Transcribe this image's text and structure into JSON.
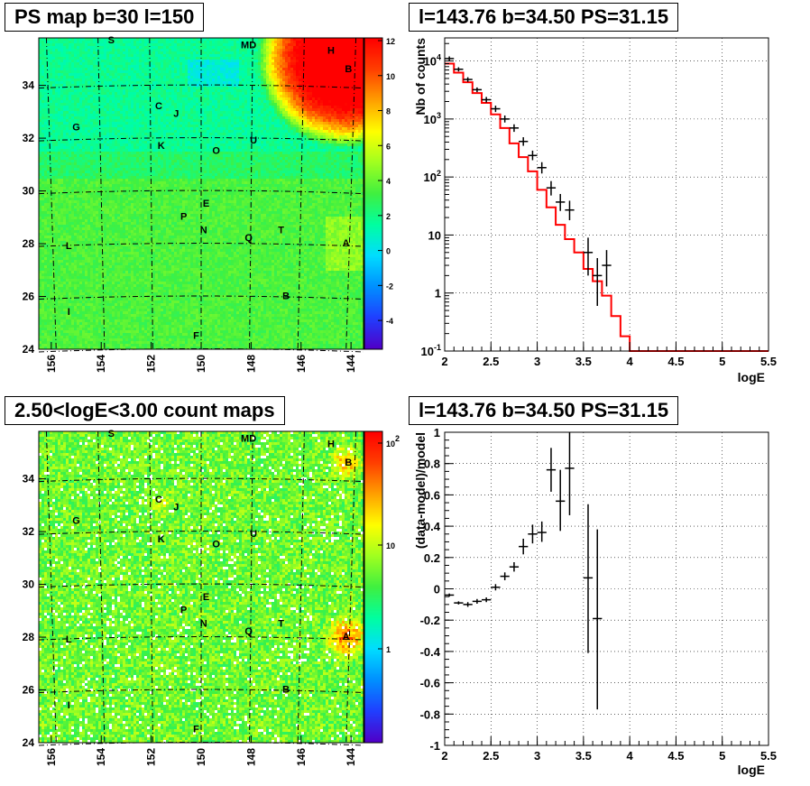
{
  "chart_data": [
    {
      "type": "heatmap",
      "title": "PS map b=30 l=150",
      "x_ticks": [
        156,
        154,
        152,
        150,
        148,
        146,
        144
      ],
      "y_ticks": [
        24,
        26,
        28,
        30,
        32,
        34
      ],
      "xlim": [
        156.5,
        143.5
      ],
      "ylim": [
        24,
        35.8
      ],
      "z_ticks": [
        "12",
        "10",
        "8",
        "6",
        "4",
        "2",
        "0",
        "-2",
        "-4"
      ],
      "zlim": [
        -5,
        12
      ],
      "colorscale": [
        "#5000c8",
        "#2040ff",
        "#0090ff",
        "#00ddff",
        "#00ffa0",
        "#40f040",
        "#a0ff20",
        "#ffff00",
        "#ffa000",
        "#ff4000",
        "#ff0000"
      ],
      "sources": [
        {
          "label": "S",
          "l": 153.6,
          "b": 35.6
        },
        {
          "label": "MD",
          "l": 148.1,
          "b": 35.4
        },
        {
          "label": "H",
          "l": 144.8,
          "b": 35.2
        },
        {
          "label": "B",
          "l": 144.1,
          "b": 34.5
        },
        {
          "label": "C",
          "l": 151.7,
          "b": 33.1
        },
        {
          "label": "J",
          "l": 151.0,
          "b": 32.8
        },
        {
          "label": "G",
          "l": 155.0,
          "b": 32.3
        },
        {
          "label": "K",
          "l": 151.6,
          "b": 31.6
        },
        {
          "label": "O",
          "l": 149.4,
          "b": 31.4
        },
        {
          "label": "U",
          "l": 147.9,
          "b": 31.8
        },
        {
          "label": "E",
          "l": 149.8,
          "b": 29.4
        },
        {
          "label": "P",
          "l": 150.7,
          "b": 28.9
        },
        {
          "label": "N",
          "l": 149.9,
          "b": 28.4
        },
        {
          "label": "Q",
          "l": 148.1,
          "b": 28.1
        },
        {
          "label": "T",
          "l": 146.8,
          "b": 28.4
        },
        {
          "label": "L",
          "l": 155.3,
          "b": 27.8
        },
        {
          "label": "A",
          "l": 144.2,
          "b": 27.9
        },
        {
          "label": "B",
          "l": 146.6,
          "b": 25.9
        },
        {
          "label": "I",
          "l": 155.3,
          "b": 25.3
        },
        {
          "label": "F",
          "l": 150.2,
          "b": 24.4
        }
      ]
    },
    {
      "type": "line",
      "title": "l=143.76 b=34.50 PS=31.15",
      "xlabel": "logE",
      "ylabel": "Nb of counts",
      "xlim": [
        2,
        5.5
      ],
      "ylim": [
        0.1,
        25000
      ],
      "yscale": "log",
      "x_ticks": [
        "2",
        "2.5",
        "3",
        "3.5",
        "4",
        "4.5",
        "5",
        "5.5"
      ],
      "y_ticks": [
        "10^{-1}",
        "1",
        "10",
        "10^{2}",
        "10^{3}",
        "10^{4}"
      ],
      "grid": true,
      "series": [
        {
          "kind": "data",
          "color": "#000000",
          "points": [
            {
              "x": 2.05,
              "y": 11000,
              "lo": 10000,
              "hi": 12000
            },
            {
              "x": 2.15,
              "y": 7200,
              "lo": 6600,
              "hi": 7800
            },
            {
              "x": 2.25,
              "y": 4800,
              "lo": 4350,
              "hi": 5250
            },
            {
              "x": 2.35,
              "y": 3200,
              "lo": 2900,
              "hi": 3500
            },
            {
              "x": 2.45,
              "y": 2150,
              "lo": 1920,
              "hi": 2400
            },
            {
              "x": 2.55,
              "y": 1500,
              "lo": 1320,
              "hi": 1700
            },
            {
              "x": 2.65,
              "y": 1000,
              "lo": 870,
              "hi": 1150
            },
            {
              "x": 2.75,
              "y": 700,
              "lo": 600,
              "hi": 810
            },
            {
              "x": 2.85,
              "y": 410,
              "lo": 345,
              "hi": 485
            },
            {
              "x": 2.95,
              "y": 235,
              "lo": 195,
              "hi": 285
            },
            {
              "x": 3.05,
              "y": 145,
              "lo": 115,
              "hi": 180
            },
            {
              "x": 3.15,
              "y": 65,
              "lo": 48,
              "hi": 85
            },
            {
              "x": 3.25,
              "y": 37,
              "lo": 26,
              "hi": 51
            },
            {
              "x": 3.35,
              "y": 27,
              "lo": 18,
              "hi": 39
            },
            {
              "x": 3.55,
              "y": 5,
              "lo": 2,
              "hi": 9
            },
            {
              "x": 3.65,
              "y": 2,
              "lo": 0.6,
              "hi": 4
            },
            {
              "x": 3.75,
              "y": 3,
              "lo": 1.3,
              "hi": 5.5
            }
          ]
        },
        {
          "kind": "model",
          "color": "#ff0000",
          "bin_edges": [
            2.0,
            2.1,
            2.2,
            2.3,
            2.4,
            2.5,
            2.6,
            2.7,
            2.8,
            2.9,
            3.0,
            3.1,
            3.2,
            3.3,
            3.4,
            3.5,
            3.6,
            3.7,
            3.8,
            3.9,
            4.0,
            5.5
          ],
          "values": [
            9000,
            6300,
            4300,
            2800,
            1900,
            1200,
            700,
            380,
            220,
            125,
            60,
            30,
            15,
            8.5,
            5,
            2.6,
            1.6,
            0.9,
            0.4,
            0.18,
            0.1
          ]
        }
      ]
    },
    {
      "type": "heatmap",
      "title": "2.50<logE<3.00 count maps",
      "x_ticks": [
        156,
        154,
        152,
        150,
        148,
        146,
        144
      ],
      "y_ticks": [
        24,
        26,
        28,
        30,
        32,
        34
      ],
      "xlim": [
        156.5,
        143.5
      ],
      "ylim": [
        24,
        35.8
      ],
      "z_ticks": [
        "10^{2}",
        "10",
        "1"
      ],
      "zscale": "log",
      "colorscale": [
        "#5000c8",
        "#2040ff",
        "#0090ff",
        "#00ddff",
        "#00ffa0",
        "#40f040",
        "#a0ff20",
        "#ffff00",
        "#ffa000",
        "#ff4000",
        "#ff0000"
      ],
      "sources_same_as_first": true
    },
    {
      "type": "scatter",
      "title": "l=143.76 b=34.50 PS=31.15",
      "xlabel": "logE",
      "ylabel": "(data-model)/model",
      "xlim": [
        2,
        5.5
      ],
      "ylim": [
        -1,
        1
      ],
      "x_ticks": [
        "2",
        "2.5",
        "3",
        "3.5",
        "4",
        "4.5",
        "5",
        "5.5"
      ],
      "y_ticks": [
        "1",
        "0.8",
        "0.6",
        "0.4",
        "0.2",
        "0",
        "-0.2",
        "-0.4",
        "-0.6",
        "-0.8",
        "-1"
      ],
      "grid": true,
      "points": [
        {
          "x": 2.05,
          "y": -0.04,
          "lo": -0.05,
          "hi": -0.03
        },
        {
          "x": 2.15,
          "y": -0.09,
          "lo": -0.1,
          "hi": -0.08
        },
        {
          "x": 2.25,
          "y": -0.1,
          "lo": -0.115,
          "hi": -0.085
        },
        {
          "x": 2.35,
          "y": -0.08,
          "lo": -0.095,
          "hi": -0.065
        },
        {
          "x": 2.45,
          "y": -0.07,
          "lo": -0.085,
          "hi": -0.055
        },
        {
          "x": 2.55,
          "y": 0.01,
          "lo": -0.01,
          "hi": 0.03
        },
        {
          "x": 2.65,
          "y": 0.08,
          "lo": 0.055,
          "hi": 0.105
        },
        {
          "x": 2.75,
          "y": 0.14,
          "lo": 0.11,
          "hi": 0.17
        },
        {
          "x": 2.85,
          "y": 0.27,
          "lo": 0.22,
          "hi": 0.32
        },
        {
          "x": 2.95,
          "y": 0.35,
          "lo": 0.29,
          "hi": 0.41
        },
        {
          "x": 3.05,
          "y": 0.36,
          "lo": 0.3,
          "hi": 0.43
        },
        {
          "x": 3.15,
          "y": 0.76,
          "lo": 0.62,
          "hi": 0.9
        },
        {
          "x": 3.25,
          "y": 0.56,
          "lo": 0.37,
          "hi": 0.76
        },
        {
          "x": 3.35,
          "y": 0.77,
          "lo": 0.47,
          "hi": 1.0
        },
        {
          "x": 3.55,
          "y": 0.07,
          "lo": -0.41,
          "hi": 0.54
        },
        {
          "x": 3.65,
          "y": -0.19,
          "lo": -0.77,
          "hi": 0.38
        }
      ]
    }
  ]
}
